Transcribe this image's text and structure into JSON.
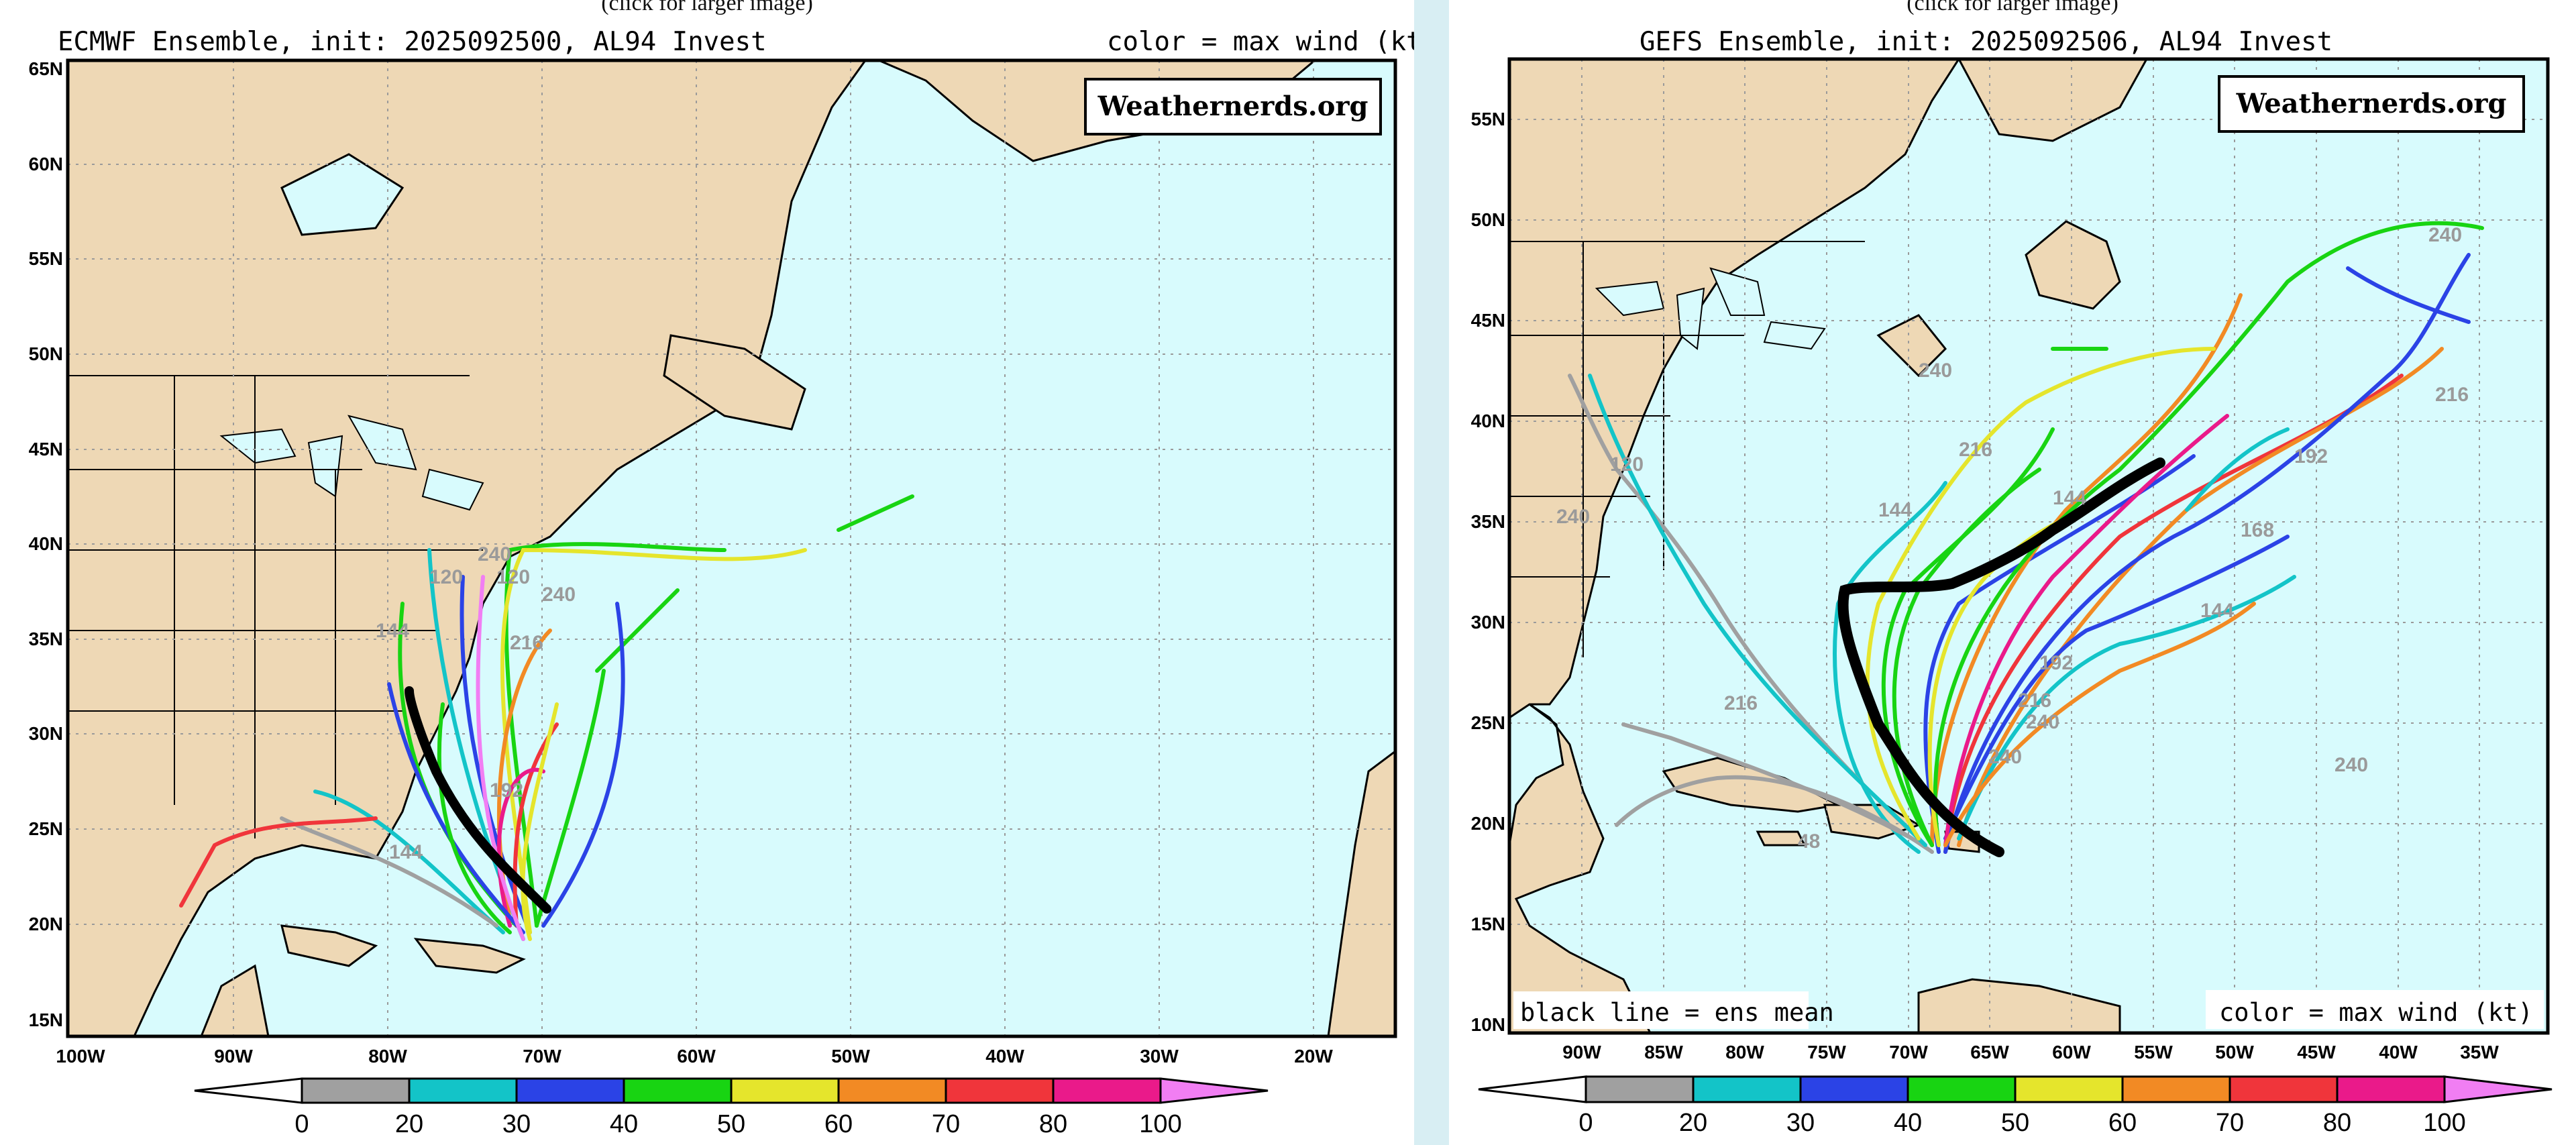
{
  "palette": {
    "land": "#eed8b5",
    "ocean": "#d8fbfd",
    "grid": "#9a9a9a",
    "frame": "#000000"
  },
  "colorbar": {
    "colors": [
      "#a0a0a0",
      "#13c4c8",
      "#2b43e6",
      "#18d412",
      "#e5e52c",
      "#f28a24",
      "#f0353b",
      "#ea1a8a",
      "#f17ef3"
    ],
    "labels": [
      "0",
      "20",
      "30",
      "40",
      "50",
      "60",
      "70",
      "80",
      "100"
    ]
  },
  "left": {
    "click_note": "(click for larger image)",
    "title_left": "ECMWF Ensemble, init: 2025092500, AL94 Invest",
    "title_right": "color = max wind (kt)",
    "watermark": "Weathernerds.org",
    "lat_labels": [
      "65N",
      "60N",
      "55N",
      "50N",
      "45N",
      "40N",
      "35N",
      "30N",
      "25N",
      "20N",
      "15N"
    ],
    "lon_labels": [
      "100W",
      "90W",
      "80W",
      "70W",
      "60W",
      "50W",
      "40W",
      "30W",
      "20W"
    ],
    "track_labels": [
      "240",
      "120",
      "240",
      "216",
      "192",
      "144",
      "120",
      "144"
    ]
  },
  "right": {
    "click_note": "(click for larger image)",
    "title": "GEFS Ensemble, init: 2025092506, AL94 Invest",
    "watermark": "Weathernerds.org",
    "lat_labels": [
      "55N",
      "50N",
      "45N",
      "40N",
      "35N",
      "30N",
      "25N",
      "20N",
      "15N",
      "10N"
    ],
    "lon_labels": [
      "90W",
      "85W",
      "80W",
      "75W",
      "70W",
      "65W",
      "60W",
      "55W",
      "50W",
      "45W",
      "40W",
      "35W"
    ],
    "note_left": "black line = ens mean",
    "note_right": "color = max wind (kt)",
    "track_labels": [
      "240",
      "240",
      "216",
      "192",
      "216",
      "240",
      "192",
      "216",
      "240",
      "168",
      "144",
      "120",
      "144",
      "240",
      "216",
      "48",
      "144",
      "240"
    ]
  }
}
